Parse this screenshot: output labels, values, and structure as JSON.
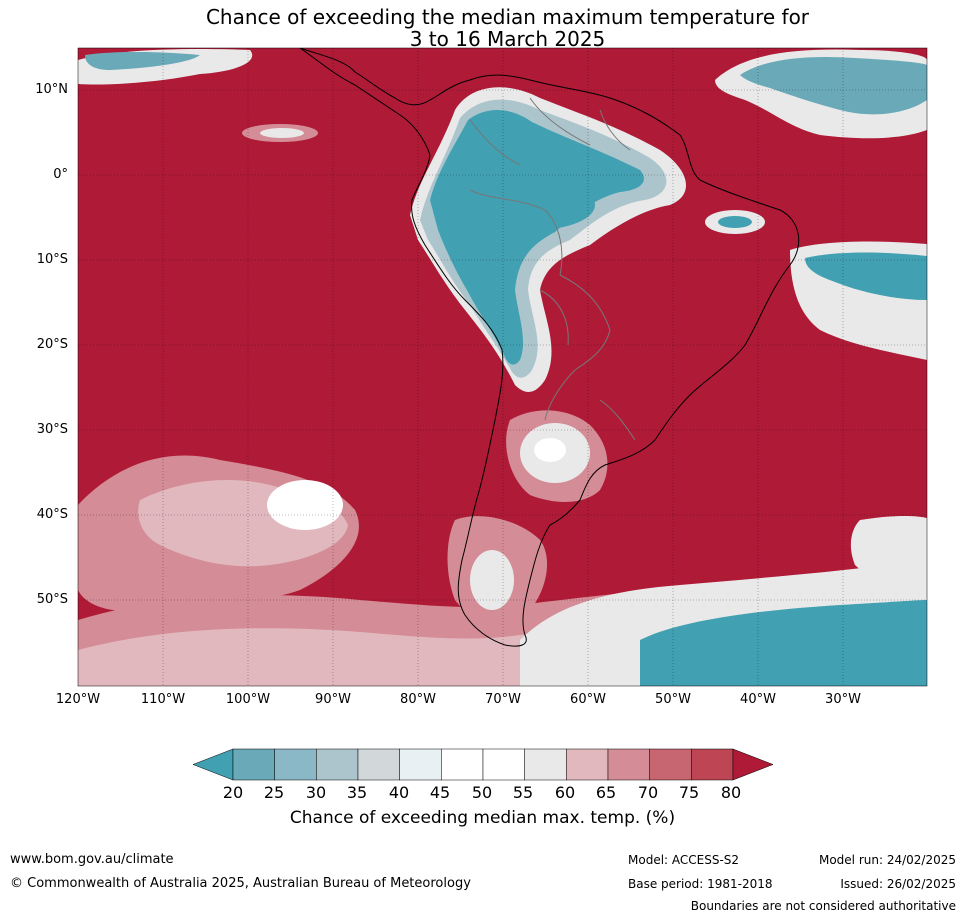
{
  "title": {
    "line1": "Chance of exceeding the median maximum temperature for",
    "line2": "3 to 16 March 2025"
  },
  "map": {
    "lat_labels": [
      "10°N",
      "0°",
      "10°S",
      "20°S",
      "30°S",
      "40°S",
      "50°S"
    ],
    "lon_labels": [
      "120°W",
      "110°W",
      "100°W",
      "90°W",
      "80°W",
      "70°W",
      "60°W",
      "50°W",
      "40°W",
      "30°W"
    ],
    "lat_values": [
      10,
      0,
      -10,
      -20,
      -30,
      -40,
      -50
    ],
    "lon_values": [
      -120,
      -110,
      -100,
      -90,
      -80,
      -70,
      -60,
      -50,
      -40,
      -30
    ],
    "extent": {
      "lon_min": -120,
      "lon_max": -20,
      "lat_min": -60,
      "lat_max": 15
    },
    "background_color": "#af1a37"
  },
  "colorbar": {
    "title": "Chance of exceeding median max. temp. (%)",
    "ticks": [
      "20",
      "25",
      "30",
      "35",
      "40",
      "45",
      "50",
      "55",
      "60",
      "65",
      "70",
      "75",
      "80"
    ],
    "colors": [
      "#41a0b2",
      "#6aa9b7",
      "#8bb8c6",
      "#acc5cc",
      "#d2d8da",
      "#e9f0f3",
      "#ffffff",
      "#ffffff",
      "#e9e9e9",
      "#e2b8bf",
      "#d48c96",
      "#c76670",
      "#be4553",
      "#af1a37"
    ]
  },
  "footer": {
    "website": "www.bom.gov.au/climate",
    "copyright": "© Commonwealth of Australia 2025, Australian Bureau of Meteorology",
    "model": "Model: ACCESS-S2",
    "base_period": "Base period: 1981-2018",
    "model_run": "Model run: 24/02/2025",
    "issued": "Issued: 26/02/2025",
    "disclaimer": "Boundaries are not considered authoritative"
  }
}
